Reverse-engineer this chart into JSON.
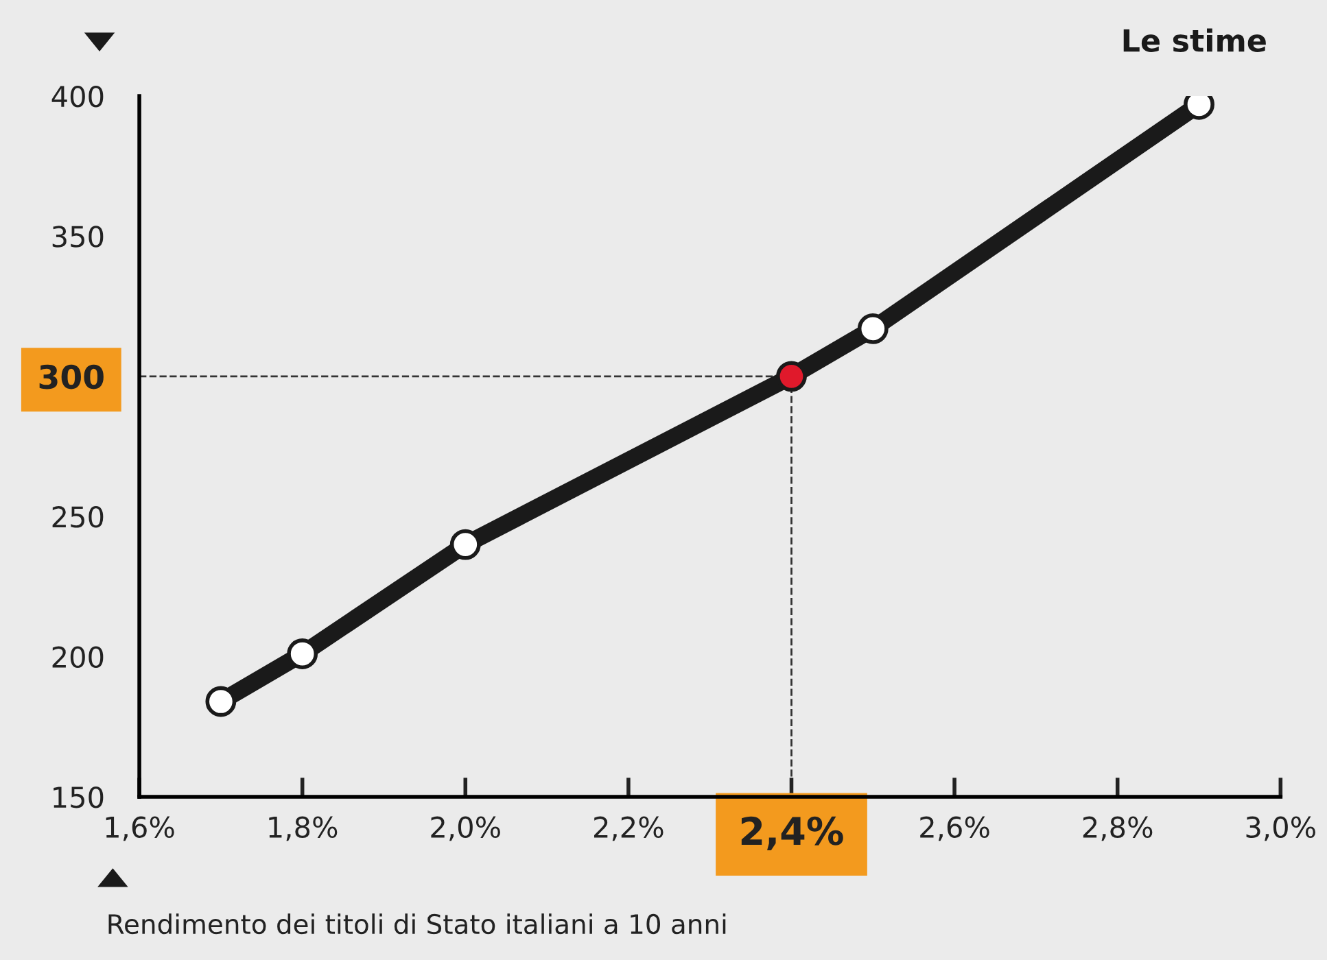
{
  "chart_data": {
    "type": "line",
    "title": "Le stime",
    "xlabel": "Rendimento dei titoli di Stato italiani a 10 anni",
    "x": [
      1.7,
      1.8,
      2.0,
      2.4,
      2.5,
      2.9
    ],
    "series": [
      {
        "color": "#1a1a1a",
        "values": [
          184,
          201,
          240,
          300,
          317,
          397
        ],
        "colors": [
          "#ffffff",
          "#ffffff",
          "#ffffff",
          "#e0192b",
          "#ffffff",
          "#ffffff"
        ]
      }
    ],
    "marker": "circle",
    "line_style": "solid",
    "xlim": [
      1.6,
      3.0
    ],
    "xticks": [
      {
        "value": 1.6,
        "label": "1,6%"
      },
      {
        "value": 1.8,
        "label": "1,8%"
      },
      {
        "value": 2.0,
        "label": "2,0%"
      },
      {
        "value": 2.2,
        "label": "2,2%"
      },
      {
        "value": 2.4,
        "label": "2,4%"
      },
      {
        "value": 2.6,
        "label": "2,6%"
      },
      {
        "value": 2.8,
        "label": "2,8%"
      },
      {
        "value": 3.0,
        "label": "3,0%"
      }
    ],
    "ylim": [
      150,
      400
    ],
    "yticks": [
      150,
      200,
      250,
      300,
      350,
      400
    ],
    "ref_lines": [
      {
        "axis": "x",
        "value": 2.4,
        "color": "#333333",
        "line_style": "dashed"
      },
      {
        "axis": "y",
        "value": 300,
        "color": "#333333",
        "line_style": "dashed"
      }
    ],
    "grid": false,
    "legend": false
  }
}
